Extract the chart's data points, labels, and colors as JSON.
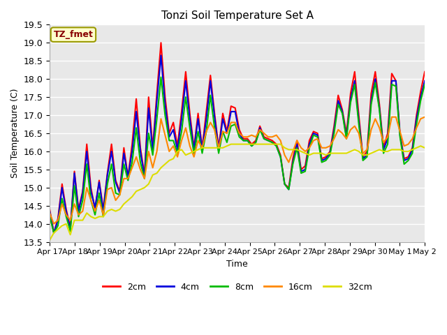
{
  "title": "Tonzi Soil Temperature Set A",
  "xlabel": "Time",
  "ylabel": "Soil Temperature (C)",
  "annotation_text": "TZ_fmet",
  "annotation_bg": "#ffffcc",
  "annotation_border": "#999900",
  "ylim": [
    13.5,
    19.5
  ],
  "yticks": [
    13.5,
    14.0,
    14.5,
    15.0,
    15.5,
    16.0,
    16.5,
    17.0,
    17.5,
    18.0,
    18.5,
    19.0,
    19.5
  ],
  "xtick_labels": [
    "Apr 17",
    "Apr 18",
    "Apr 19",
    "Apr 20",
    "Apr 21",
    "Apr 22",
    "Apr 23",
    "Apr 24",
    "Apr 25",
    "Apr 26",
    "Apr 27",
    "Apr 28",
    "Apr 29",
    "Apr 30",
    "May 1",
    "May 2"
  ],
  "bg_color": "#e8e8e8",
  "grid_color": "#ffffff",
  "line_colors": [
    "#ff0000",
    "#0000dd",
    "#00bb00",
    "#ff8800",
    "#dddd00"
  ],
  "line_labels": [
    "2cm",
    "4cm",
    "8cm",
    "16cm",
    "32cm"
  ],
  "line_width": 1.5,
  "series": {
    "2cm": [
      14.4,
      13.75,
      14.15,
      15.1,
      14.4,
      13.9,
      15.45,
      14.4,
      14.9,
      16.2,
      15.0,
      14.4,
      15.2,
      14.4,
      15.4,
      16.2,
      15.2,
      14.9,
      16.1,
      15.3,
      16.2,
      17.45,
      16.1,
      15.35,
      17.5,
      16.1,
      17.6,
      19.0,
      17.5,
      16.5,
      16.8,
      16.15,
      17.1,
      18.2,
      17.05,
      16.1,
      17.05,
      16.1,
      17.1,
      18.1,
      17.05,
      16.1,
      17.05,
      16.55,
      17.25,
      17.2,
      16.6,
      16.35,
      16.35,
      16.2,
      16.3,
      16.7,
      16.4,
      16.35,
      16.3,
      16.2,
      15.9,
      15.1,
      15.0,
      15.8,
      16.3,
      15.5,
      15.6,
      16.3,
      16.55,
      16.5,
      15.8,
      15.85,
      16.0,
      16.7,
      17.55,
      17.15,
      16.5,
      17.6,
      18.2,
      17.0,
      15.85,
      16.0,
      17.6,
      18.2,
      17.3,
      16.1,
      16.5,
      18.15,
      17.95,
      16.5,
      15.8,
      15.85,
      16.1,
      17.0,
      17.65,
      18.2
    ],
    "4cm": [
      14.35,
      13.75,
      14.1,
      15.0,
      14.35,
      13.85,
      15.4,
      14.35,
      14.85,
      16.0,
      14.9,
      14.45,
      15.15,
      14.35,
      15.35,
      16.0,
      15.15,
      14.85,
      15.95,
      15.3,
      16.0,
      17.1,
      16.0,
      15.3,
      17.2,
      16.0,
      17.4,
      18.65,
      17.3,
      16.4,
      16.6,
      16.05,
      16.9,
      17.95,
      16.9,
      16.05,
      16.9,
      16.05,
      16.9,
      17.95,
      16.95,
      16.05,
      16.9,
      16.5,
      17.1,
      17.1,
      16.5,
      16.3,
      16.3,
      16.15,
      16.25,
      16.65,
      16.35,
      16.3,
      16.25,
      16.15,
      15.85,
      15.1,
      14.95,
      15.7,
      16.2,
      15.45,
      15.5,
      16.2,
      16.5,
      16.45,
      15.75,
      15.8,
      15.95,
      16.6,
      17.4,
      17.1,
      16.4,
      17.45,
      17.95,
      16.85,
      15.8,
      15.9,
      17.4,
      18.0,
      17.2,
      16.05,
      16.35,
      17.95,
      17.95,
      16.45,
      15.75,
      15.8,
      16.05,
      16.9,
      17.5,
      17.95
    ],
    "8cm": [
      14.2,
      13.75,
      13.95,
      14.7,
      14.2,
      13.8,
      15.05,
      14.2,
      14.65,
      15.65,
      14.65,
      14.25,
      14.85,
      14.2,
      15.1,
      15.65,
      14.85,
      14.8,
      15.65,
      15.2,
      15.7,
      16.65,
      15.7,
      15.25,
      16.5,
      15.9,
      16.9,
      18.05,
      17.0,
      16.3,
      16.3,
      15.95,
      16.55,
      17.5,
      16.65,
      15.95,
      16.55,
      15.95,
      16.55,
      17.55,
      16.65,
      15.95,
      16.55,
      16.25,
      16.7,
      16.75,
      16.4,
      16.3,
      16.3,
      16.15,
      16.25,
      16.6,
      16.35,
      16.3,
      16.25,
      16.15,
      15.85,
      15.1,
      14.95,
      15.65,
      16.1,
      15.4,
      15.45,
      16.1,
      16.45,
      16.4,
      15.7,
      15.75,
      15.9,
      16.5,
      17.3,
      17.05,
      16.35,
      17.35,
      17.85,
      16.75,
      15.75,
      15.85,
      17.3,
      17.9,
      17.15,
      15.95,
      16.2,
      17.85,
      17.8,
      16.4,
      15.65,
      15.75,
      15.95,
      16.75,
      17.4,
      17.85
    ],
    "16cm": [
      14.3,
      14.0,
      14.1,
      14.55,
      14.25,
      14.1,
      14.55,
      14.25,
      14.35,
      15.0,
      14.65,
      14.35,
      14.65,
      14.25,
      14.95,
      15.0,
      14.65,
      14.8,
      15.25,
      15.25,
      15.55,
      15.85,
      15.5,
      15.25,
      16.0,
      15.55,
      16.0,
      16.9,
      16.45,
      16.0,
      16.15,
      15.85,
      16.3,
      16.65,
      16.15,
      15.85,
      16.3,
      16.1,
      16.55,
      16.8,
      16.6,
      16.1,
      16.55,
      16.5,
      16.8,
      16.8,
      16.5,
      16.4,
      16.4,
      16.45,
      16.4,
      16.6,
      16.5,
      16.4,
      16.4,
      16.45,
      16.3,
      15.9,
      15.7,
      16.0,
      16.3,
      16.1,
      16.0,
      16.1,
      16.3,
      16.35,
      16.1,
      16.1,
      16.15,
      16.35,
      16.6,
      16.5,
      16.35,
      16.6,
      16.7,
      16.5,
      15.95,
      16.05,
      16.6,
      16.9,
      16.65,
      16.25,
      16.4,
      16.95,
      16.95,
      16.55,
      16.15,
      16.2,
      16.35,
      16.65,
      16.9,
      16.95
    ],
    "32cm": [
      13.55,
      13.75,
      13.85,
      13.95,
      14.0,
      13.7,
      14.1,
      14.1,
      14.1,
      14.3,
      14.2,
      14.15,
      14.2,
      14.2,
      14.35,
      14.4,
      14.35,
      14.4,
      14.55,
      14.65,
      14.75,
      14.9,
      14.95,
      15.0,
      15.1,
      15.35,
      15.4,
      15.55,
      15.65,
      15.75,
      15.8,
      16.0,
      16.05,
      15.9,
      15.95,
      16.0,
      16.05,
      16.1,
      16.1,
      16.1,
      16.1,
      16.1,
      16.1,
      16.15,
      16.2,
      16.2,
      16.2,
      16.2,
      16.2,
      16.2,
      16.2,
      16.2,
      16.2,
      16.2,
      16.2,
      16.2,
      16.2,
      16.1,
      16.05,
      16.05,
      16.05,
      16.0,
      15.95,
      15.9,
      15.95,
      15.95,
      15.95,
      15.9,
      15.95,
      15.95,
      15.95,
      15.95,
      15.95,
      16.0,
      16.05,
      16.0,
      15.9,
      15.9,
      15.95,
      16.0,
      16.05,
      16.0,
      16.0,
      16.05,
      16.05,
      16.05,
      16.0,
      16.0,
      16.05,
      16.1,
      16.15,
      16.1
    ]
  }
}
